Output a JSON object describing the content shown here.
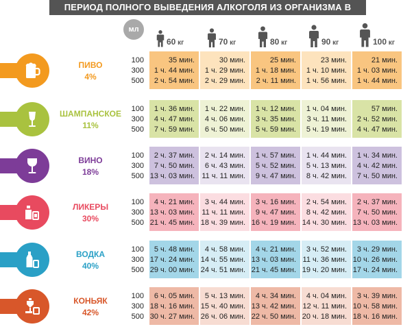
{
  "title": "ПЕРИОД ПОЛНОГО ВЫВЕДЕНИЯ АЛКОГОЛЯ ИЗ ОРГАНИЗМА В ЧАСАХ",
  "header": {
    "ml_label": "мл",
    "weights": [
      {
        "num": "60",
        "unit": "кг"
      },
      {
        "num": "70",
        "unit": "кг"
      },
      {
        "num": "80",
        "unit": "кг"
      },
      {
        "num": "90",
        "unit": "кг"
      },
      {
        "num": "100",
        "unit": "кг"
      }
    ]
  },
  "volumes": [
    "100",
    "300",
    "500"
  ],
  "drinks": [
    {
      "name": "ПИВО",
      "percent": "4%",
      "icon": "beer-mug-icon",
      "color": "#f39a1f",
      "light": "#fde3bd",
      "dark": "#f9c580",
      "values": [
        [
          "35 мин.",
          "1 ч. 44 мин.",
          "2 ч. 54 мин."
        ],
        [
          "30 мин.",
          "1 ч. 29 мин.",
          "2 ч. 29 мин."
        ],
        [
          "25 мин.",
          "1 ч. 18 мин.",
          "2 ч. 11 мин."
        ],
        [
          "23 мин.",
          "1 ч. 10 мин.",
          "1 ч. 56 мин."
        ],
        [
          "21 мин.",
          "1 ч. 03 мин.",
          "1 ч. 44 мин."
        ]
      ]
    },
    {
      "name": "ШАМПАНСКОЕ",
      "percent": "11%",
      "icon": "champagne-glass-icon",
      "color": "#a9c23f",
      "light": "#eef2d5",
      "dark": "#d9e3a6",
      "values": [
        [
          "1 ч. 36 мин.",
          "4 ч. 47 мин.",
          "7 ч. 59 мин."
        ],
        [
          "1 ч. 22 мин.",
          "4 ч. 06 мин.",
          "6 ч. 50 мин."
        ],
        [
          "1 ч. 12 мин.",
          "3 ч. 35 мин.",
          "5 ч. 59 мин."
        ],
        [
          "1 ч. 04 мин.",
          "3 ч. 11 мин.",
          "5 ч. 19 мин."
        ],
        [
          "57 мин.",
          "2 ч. 52 мин.",
          "4 ч. 47 мин."
        ]
      ]
    },
    {
      "name": "ВИНО",
      "percent": "18%",
      "icon": "wine-glass-icon",
      "color": "#7d3c98",
      "light": "#e9e3f0",
      "dark": "#cdc1de",
      "values": [
        [
          "2 ч. 37 мин.",
          "7 ч. 50 мин.",
          "13 ч. 03 мин."
        ],
        [
          "2 ч. 14 мин.",
          "6 ч. 43 мин.",
          "11 ч. 11 мин."
        ],
        [
          "1 ч. 57 мин.",
          "5 ч. 52 мин.",
          "9 ч. 47 мин."
        ],
        [
          "1 ч. 44 мин.",
          "5 ч. 13 мин.",
          "8 ч. 42 мин."
        ],
        [
          "1 ч. 34 мин.",
          "4 ч. 42 мин.",
          "7 ч. 50 мин."
        ]
      ]
    },
    {
      "name": "ЛИКЕРЫ",
      "percent": "30%",
      "icon": "liqueur-bottle-icon",
      "color": "#e84a5f",
      "light": "#fbdde1",
      "dark": "#f5b3bc",
      "values": [
        [
          "4 ч. 21 мин.",
          "13 ч. 03 мин.",
          "21 ч. 45 мин."
        ],
        [
          "3 ч. 44 мин.",
          "11 ч. 11 мин.",
          "18 ч. 39 мин."
        ],
        [
          "3 ч. 16 мин.",
          "9 ч. 47 мин.",
          "16 ч. 19 мин."
        ],
        [
          "2 ч. 54 мин.",
          "8 ч. 42 мин.",
          "14 ч. 30 мин."
        ],
        [
          "2 ч. 37 мин.",
          "7 ч. 50 мин.",
          "13 ч. 03 мин."
        ]
      ]
    },
    {
      "name": "ВОДКА",
      "percent": "40%",
      "icon": "vodka-bottle-icon",
      "color": "#2aa0c6",
      "light": "#d6edf5",
      "dark": "#a3d6e8",
      "values": [
        [
          "5 ч. 48 мин.",
          "17 ч. 24 мин.",
          "29 ч. 00 мин."
        ],
        [
          "4 ч. 58 мин.",
          "14 ч. 55 мин.",
          "24 ч. 51 мин."
        ],
        [
          "4 ч. 21 мин.",
          "13 ч. 03 мин.",
          "21 ч. 45 мин."
        ],
        [
          "3 ч. 52 мин.",
          "11 ч. 36 мин.",
          "19 ч. 20 мин."
        ],
        [
          "3 ч. 29 мин.",
          "10 ч. 26 мин.",
          "17 ч. 24 мин."
        ]
      ]
    },
    {
      "name": "КОНЬЯК",
      "percent": "42%",
      "icon": "cognac-glass-icon",
      "color": "#d8572a",
      "light": "#f7dcd2",
      "dark": "#eeb9a6",
      "values": [
        [
          "6 ч. 05 мин.",
          "18 ч. 16 мин.",
          "30 ч. 27 мин."
        ],
        [
          "5 ч. 13 мин.",
          "15 ч. 40 мин.",
          "26 ч. 06 мин."
        ],
        [
          "4 ч. 34 мин.",
          "13 ч. 42 мин.",
          "22 ч. 50 мин."
        ],
        [
          "4 ч. 04 мин.",
          "12 ч. 11 мин.",
          "20 ч. 18 мин."
        ],
        [
          "3 ч. 39 мин.",
          "10 ч. 58 мин.",
          "18 ч. 16 мин."
        ]
      ]
    }
  ]
}
